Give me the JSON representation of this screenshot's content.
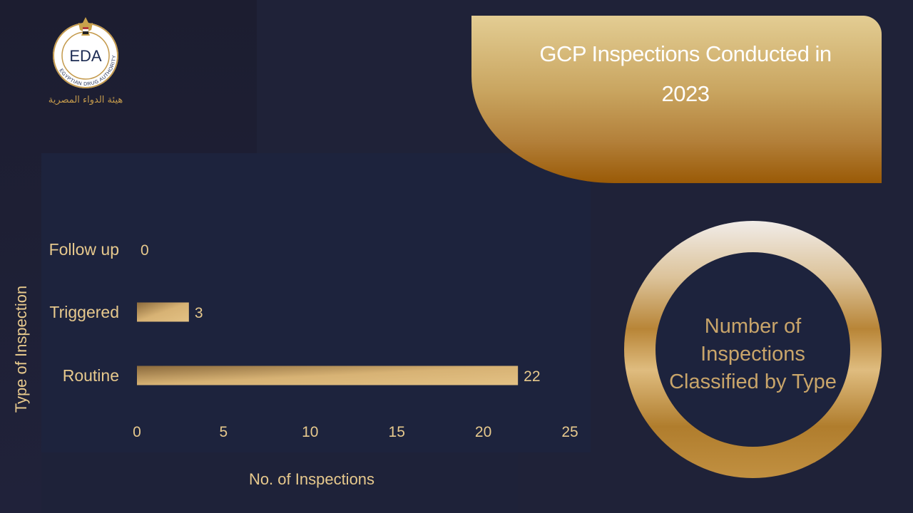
{
  "banner": {
    "title_line1": "GCP Inspections Conducted in",
    "title_line2": "2023"
  },
  "ring": {
    "text": "Number of Inspections Classified by Type"
  },
  "logo": {
    "text": "EDA",
    "ring_text": "EGYPTIAN DRUG AUTHORITY",
    "arabic_text": "هيئة الدواء المصرية"
  },
  "colors": {
    "background": "#1f2238",
    "gold": "#e7c98d",
    "banner_dark": "#9a5a06"
  },
  "chart_data": {
    "type": "bar",
    "orientation": "horizontal",
    "categories": [
      "Follow up",
      "Triggered",
      "Routine"
    ],
    "values": [
      0,
      3,
      22
    ],
    "xlabel": "No. of Inspections",
    "ylabel": "Type of Inspection",
    "xlim": [
      0,
      25
    ],
    "xticks": [
      0,
      5,
      10,
      15,
      20,
      25
    ],
    "grid": false,
    "legend": "none"
  }
}
